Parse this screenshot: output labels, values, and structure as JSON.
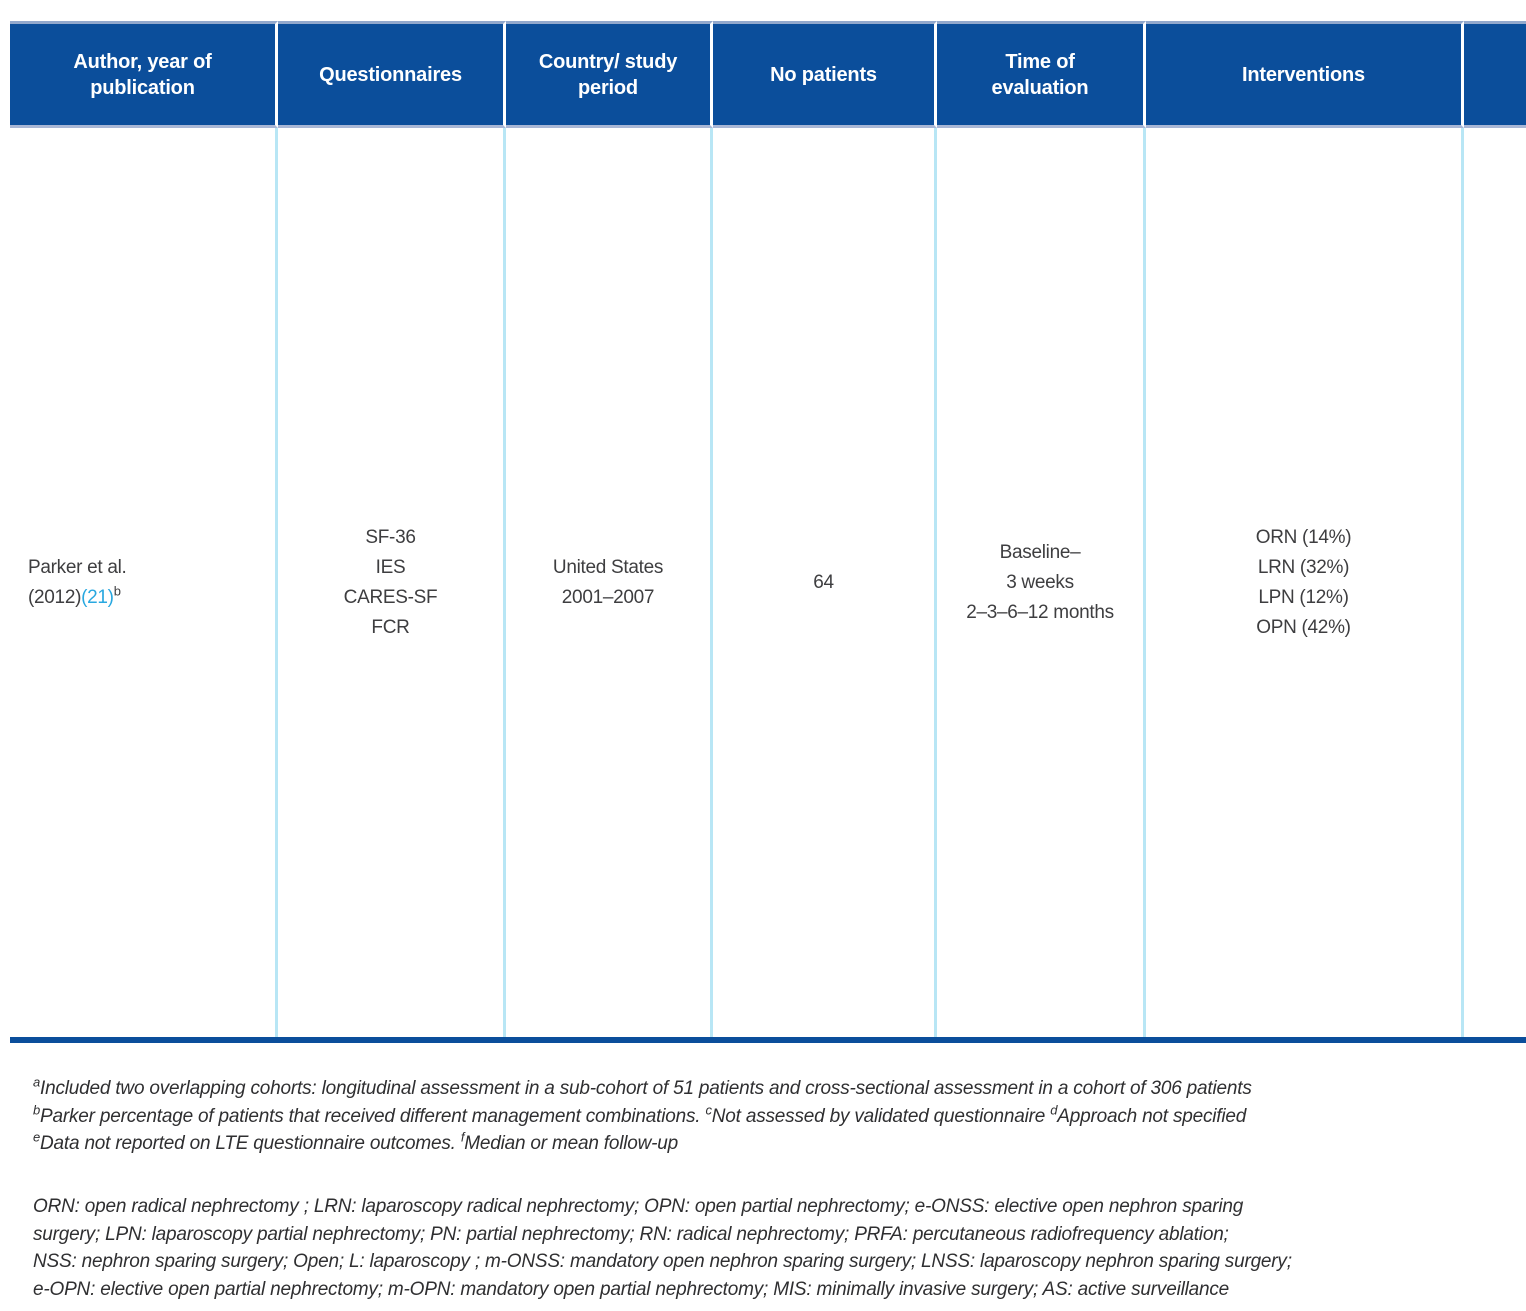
{
  "colors": {
    "header_blue": "#0b4e9b",
    "separator_light_blue": "#b8e6f5",
    "header_bevel_top": "#93a9cd",
    "header_bevel_bottom": "#a9b7d6",
    "citation_link_blue": "#29a8e0",
    "body_text": "#3e3e40",
    "note_text": "#2f2f31"
  },
  "table": {
    "columns": [
      {
        "id": "author",
        "lines": [
          "Author, year of",
          "publication"
        ]
      },
      {
        "id": "questionnaires",
        "lines": [
          "Questionnaires"
        ]
      },
      {
        "id": "country_period",
        "lines": [
          "Country/ study",
          "period"
        ]
      },
      {
        "id": "no_patients",
        "lines": [
          "No patients"
        ]
      },
      {
        "id": "time_of_evaluation",
        "lines": [
          "Time of",
          "evaluation"
        ]
      },
      {
        "id": "interventions",
        "lines": [
          "Interventions"
        ]
      },
      {
        "id": "cutoff",
        "lines": [
          ""
        ]
      }
    ],
    "row": {
      "author": {
        "name": "Parker et al.",
        "year": "(2012)",
        "citation": "(21)",
        "footnote_marker": "b"
      },
      "questionnaires": [
        "SF-36",
        "IES",
        "CARES-SF",
        "FCR"
      ],
      "country_period": [
        "United States",
        "2001–2007"
      ],
      "no_patients": "64",
      "time_of_evaluation": [
        "Baseline–",
        "3 weeks",
        "2–3–6–12 months"
      ],
      "interventions": [
        "ORN (14%)",
        "LRN (32%)",
        "LPN (12%)",
        "OPN (42%)"
      ]
    }
  },
  "footnotes": {
    "line1": {
      "sup": "a",
      "text": "Included two overlapping cohorts: longitudinal assessment in a sub-cohort of 51 patients and cross-sectional assessment in a cohort of 306 patients"
    },
    "line2": {
      "sup1": "b",
      "text1": "Parker percentage of patients that received different management combinations. ",
      "sup2": "c",
      "text2": "Not assessed by validated questionnaire ",
      "sup3": "d",
      "text3": "Approach not specified"
    },
    "line3": {
      "sup1": "e",
      "text1": "Data not reported on LTE questionnaire outcomes. ",
      "sup2": "f",
      "text2": "Median or mean follow-up"
    }
  },
  "abbreviations": {
    "lines": [
      "ORN: open radical nephrectomy ; LRN: laparoscopy radical nephrectomy;  OPN: open partial nephrectomy; e-ONSS: elective open nephron sparing",
      "surgery; LPN: laparoscopy partial nephrectomy; PN: partial nephrectomy; RN: radical nephrectomy; PRFA: percutaneous radiofrequency ablation;",
      "NSS: nephron sparing surgery; Open; L: laparoscopy ; m-ONSS: mandatory open nephron sparing surgery; LNSS: laparoscopy nephron sparing surgery;",
      "e-OPN: elective open partial nephrectomy; m-OPN: mandatory open partial nephrectomy;  MIS: minimally invasive surgery;  AS: active surveillance"
    ]
  }
}
